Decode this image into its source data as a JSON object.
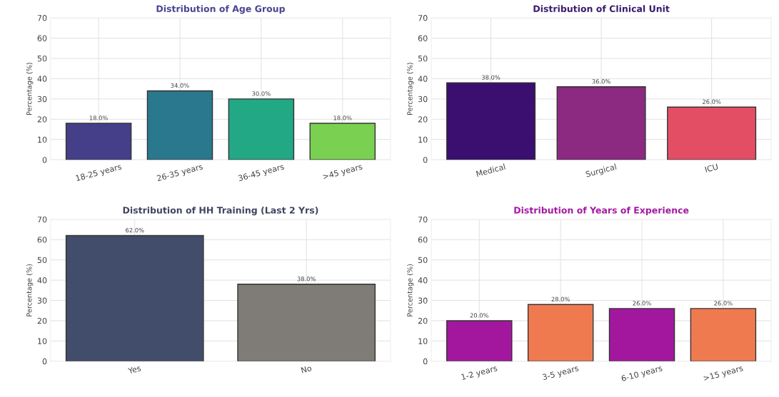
{
  "chart_data": [
    {
      "type": "bar",
      "title": "Distribution of Age Group",
      "ylabel": "Percentage (%)",
      "categories": [
        "18-25 years",
        "26-35 years",
        "36-45 years",
        ">45 years"
      ],
      "values": [
        18,
        34,
        30,
        18
      ],
      "colors": [
        "#453f8a",
        "#2a788e",
        "#22a884",
        "#7ad151"
      ],
      "value_labels": [
        "18.0%",
        "34.0%",
        "30.0%",
        "18.0%"
      ],
      "ylim": [
        0,
        70
      ],
      "yticks": [
        0,
        10,
        20,
        30,
        40,
        50,
        60,
        70
      ],
      "grid": true
    },
    {
      "type": "bar",
      "title": "Distribution of Clinical Unit",
      "ylabel": "Percentage (%)",
      "categories": [
        "Medical",
        "Surgical",
        "ICU"
      ],
      "values": [
        38,
        36,
        26
      ],
      "colors": [
        "#3b0f70",
        "#8c2981",
        "#e34e65"
      ],
      "value_labels": [
        "38.0%",
        "36.0%",
        "26.0%"
      ],
      "ylim": [
        0,
        70
      ],
      "yticks": [
        0,
        10,
        20,
        30,
        40,
        50,
        60,
        70
      ],
      "grid": true
    },
    {
      "type": "bar",
      "title": "Distribution of HH Training (Last 2 Yrs)",
      "ylabel": "Percentage (%)",
      "categories": [
        "Yes",
        "No"
      ],
      "values": [
        62,
        38
      ],
      "colors": [
        "#414d6b",
        "#7f7c77"
      ],
      "value_labels": [
        "62.0%",
        "38.0%"
      ],
      "ylim": [
        0,
        70
      ],
      "yticks": [
        0,
        10,
        20,
        30,
        40,
        50,
        60,
        70
      ],
      "grid": true
    },
    {
      "type": "bar",
      "title": "Distribution of Years of Experience",
      "ylabel": "Percentage (%)",
      "categories": [
        "1-2 years",
        "3-5 years",
        "6-10 years",
        ">15 years"
      ],
      "values": [
        20,
        28,
        26,
        26
      ],
      "colors": [
        "#a3179f",
        "#f07a50",
        "#a3179f",
        "#f07a50"
      ],
      "value_labels": [
        "20.0%",
        "28.0%",
        "26.0%",
        "26.0%"
      ],
      "ylim": [
        0,
        70
      ],
      "yticks": [
        0,
        10,
        20,
        30,
        40,
        50,
        60,
        70
      ],
      "grid": true
    }
  ]
}
